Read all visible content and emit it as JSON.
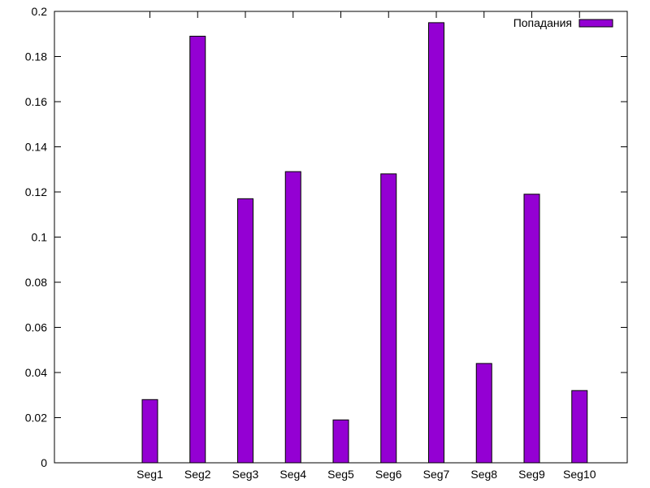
{
  "chart_data": {
    "type": "bar",
    "title": "",
    "xlabel": "",
    "ylabel": "",
    "categories": [
      "Seg1",
      "Seg2",
      "Seg3",
      "Seg4",
      "Seg5",
      "Seg6",
      "Seg7",
      "Seg8",
      "Seg9",
      "Seg10"
    ],
    "series": [
      {
        "name": "Попадания",
        "color": "#9400d3",
        "values": [
          0.028,
          0.189,
          0.117,
          0.129,
          0.019,
          0.128,
          0.195,
          0.044,
          0.119,
          0.032
        ]
      }
    ],
    "ylim": [
      0,
      0.2
    ],
    "yticks": [
      0,
      0.02,
      0.04,
      0.06,
      0.08,
      0.1,
      0.12,
      0.14,
      0.16,
      0.18,
      0.2
    ],
    "ytick_labels": [
      "0",
      "0.02",
      "0.04",
      "0.06",
      "0.08",
      "0.1",
      "0.12",
      "0.14",
      "0.16",
      "0.18",
      "0.2"
    ],
    "grid": false,
    "legend_position": "top-right"
  }
}
